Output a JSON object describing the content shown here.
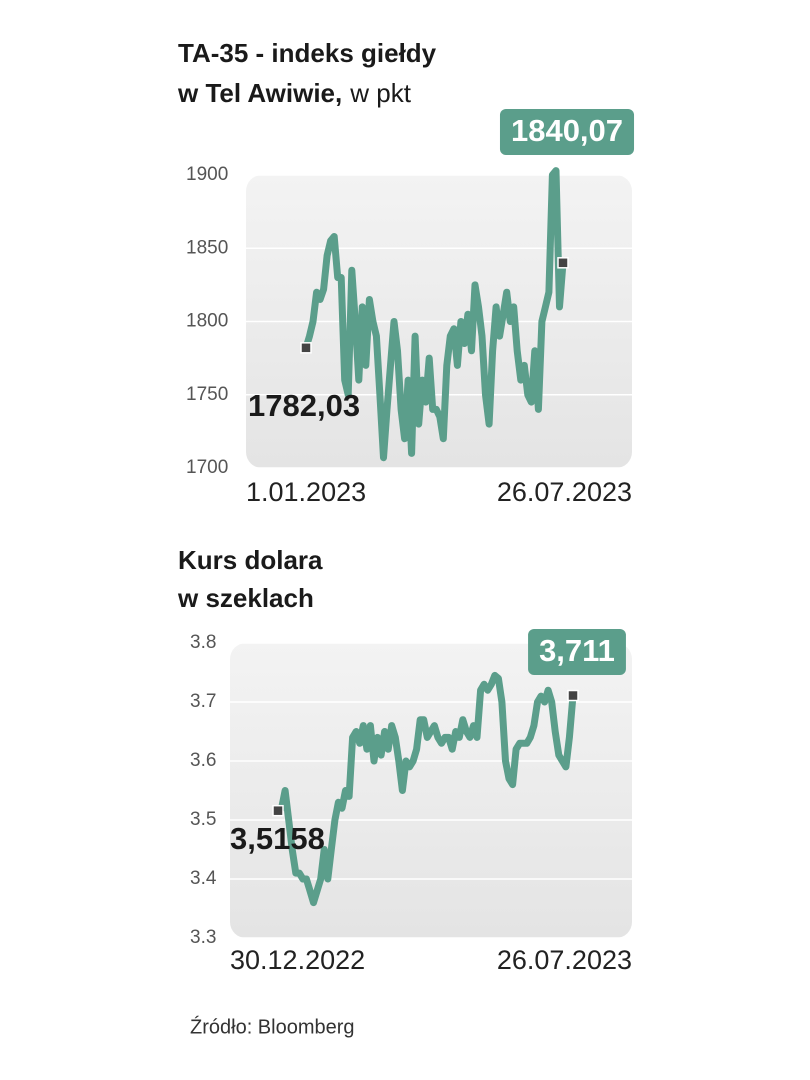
{
  "chart_data": [
    {
      "type": "line",
      "title": [
        "TA-35 - indeks giełdy",
        "w Tel Awiwie,"
      ],
      "unit": "w pkt",
      "categories": [
        "1.01.2023",
        null,
        null,
        null,
        null,
        null,
        null,
        null,
        null,
        null,
        null,
        null,
        null,
        null,
        null,
        null,
        null,
        null,
        null,
        null,
        null,
        null,
        null,
        null,
        null,
        null,
        null,
        null,
        null,
        null,
        null,
        null,
        null,
        null,
        null,
        null,
        null,
        null,
        null,
        null,
        null,
        null,
        null,
        null,
        null,
        null,
        null,
        null,
        null,
        null,
        null,
        null,
        null,
        null,
        null,
        null,
        null,
        null,
        null,
        null,
        null,
        null,
        null,
        null,
        null,
        null,
        null,
        null,
        null,
        null,
        null,
        null,
        null,
        "26.07.2023"
      ],
      "values": [
        1782.03,
        1790,
        1800,
        1820,
        1815,
        1822,
        1845,
        1855,
        1858,
        1830,
        1830,
        1760,
        1750,
        1835,
        1800,
        1760,
        1810,
        1770,
        1815,
        1800,
        1790,
        1750,
        1707,
        1740,
        1770,
        1800,
        1780,
        1740,
        1720,
        1760,
        1710,
        1790,
        1730,
        1760,
        1745,
        1775,
        1740,
        1740,
        1735,
        1720,
        1770,
        1790,
        1795,
        1770,
        1800,
        1785,
        1805,
        1780,
        1825,
        1810,
        1790,
        1750,
        1730,
        1780,
        1810,
        1790,
        1805,
        1820,
        1800,
        1810,
        1780,
        1760,
        1770,
        1750,
        1745,
        1780,
        1740,
        1800,
        1810,
        1820,
        1900,
        1903,
        1810,
        1840.07
      ],
      "value_labels": [
        "1782,03",
        null,
        null,
        null,
        null,
        null,
        null,
        null,
        null,
        null,
        null,
        null,
        null,
        null,
        null,
        null,
        null,
        null,
        null,
        null,
        null,
        null,
        null,
        null,
        null,
        null,
        null,
        null,
        null,
        null,
        null,
        null,
        null,
        null,
        null,
        null,
        null,
        null,
        null,
        null,
        null,
        null,
        null,
        null,
        null,
        null,
        null,
        null,
        null,
        null,
        null,
        null,
        null,
        null,
        null,
        null,
        null,
        null,
        null,
        null,
        null,
        null,
        null,
        null,
        null,
        null,
        null,
        null,
        null,
        null,
        null,
        null,
        null,
        "1840,07"
      ],
      "color": "#5b9e8b",
      "ylim": [
        1700,
        1900
      ],
      "yticks": [
        1700,
        1750,
        1800,
        1850,
        1900
      ],
      "grid": true
    },
    {
      "type": "line",
      "title": [
        "Kurs dolara",
        "w szeklach"
      ],
      "categories": [
        "30.12.2022",
        null,
        null,
        null,
        null,
        null,
        null,
        null,
        null,
        null,
        null,
        null,
        null,
        null,
        null,
        null,
        null,
        null,
        null,
        null,
        null,
        null,
        null,
        null,
        null,
        null,
        null,
        null,
        null,
        null,
        null,
        null,
        null,
        null,
        null,
        null,
        null,
        null,
        null,
        null,
        null,
        null,
        null,
        null,
        null,
        null,
        null,
        null,
        null,
        null,
        null,
        null,
        null,
        null,
        null,
        null,
        null,
        null,
        null,
        null,
        null,
        null,
        null,
        null,
        null,
        null,
        null,
        null,
        null,
        null,
        null,
        null,
        null,
        null,
        null,
        null,
        null,
        null,
        null,
        null,
        null,
        null,
        null,
        "26.07.2023"
      ],
      "values": [
        3.5158,
        3.52,
        3.55,
        3.5,
        3.45,
        3.41,
        3.41,
        3.4,
        3.4,
        3.38,
        3.36,
        3.38,
        3.4,
        3.45,
        3.4,
        3.45,
        3.5,
        3.53,
        3.52,
        3.55,
        3.54,
        3.64,
        3.65,
        3.63,
        3.66,
        3.62,
        3.66,
        3.6,
        3.64,
        3.61,
        3.65,
        3.62,
        3.66,
        3.64,
        3.6,
        3.55,
        3.6,
        3.59,
        3.6,
        3.62,
        3.67,
        3.67,
        3.64,
        3.65,
        3.66,
        3.64,
        3.63,
        3.64,
        3.64,
        3.62,
        3.65,
        3.64,
        3.67,
        3.65,
        3.64,
        3.66,
        3.64,
        3.72,
        3.73,
        3.72,
        3.73,
        3.745,
        3.74,
        3.7,
        3.6,
        3.57,
        3.56,
        3.62,
        3.63,
        3.63,
        3.63,
        3.64,
        3.66,
        3.7,
        3.71,
        3.7,
        3.72,
        3.7,
        3.65,
        3.61,
        3.6,
        3.59,
        3.64,
        3.711
      ],
      "value_labels": [
        "3,5158",
        null,
        null,
        null,
        null,
        null,
        null,
        null,
        null,
        null,
        null,
        null,
        null,
        null,
        null,
        null,
        null,
        null,
        null,
        null,
        null,
        null,
        null,
        null,
        null,
        null,
        null,
        null,
        null,
        null,
        null,
        null,
        null,
        null,
        null,
        null,
        null,
        null,
        null,
        null,
        null,
        null,
        null,
        null,
        null,
        null,
        null,
        null,
        null,
        null,
        null,
        null,
        null,
        null,
        null,
        null,
        null,
        null,
        null,
        null,
        null,
        null,
        null,
        null,
        null,
        null,
        null,
        null,
        null,
        null,
        null,
        null,
        null,
        null,
        null,
        null,
        null,
        null,
        null,
        null,
        null,
        null,
        null,
        "3,711"
      ],
      "color": "#5b9e8b",
      "ylim": [
        3.3,
        3.8
      ],
      "yticks": [
        3.3,
        3.4,
        3.5,
        3.6,
        3.7,
        3.8
      ],
      "grid": true
    }
  ],
  "source": "Źródło: Bloomberg"
}
